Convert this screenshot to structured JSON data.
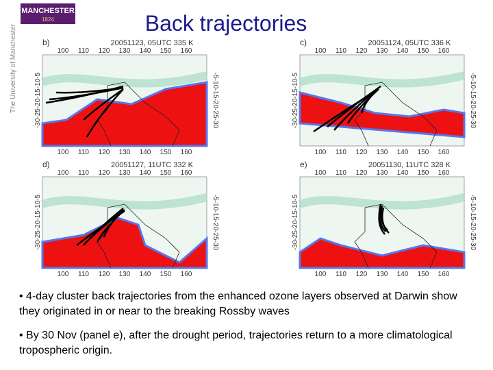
{
  "logo": {
    "name": "MANCHESTER",
    "year": "1824"
  },
  "side_text": "The University of Manchester",
  "title": "Back trajectories",
  "axes": {
    "x_ticks": [
      "100",
      "110",
      "120",
      "130",
      "140",
      "150",
      "160"
    ],
    "y_left": "-30-25-20-15-10-5",
    "y_right": "-5-10-15-20-25-30"
  },
  "panels": [
    {
      "label": "b)",
      "caption": "20051123, 05UTC 335 K"
    },
    {
      "label": "c)",
      "caption": "20051124, 05UTC 336 K"
    },
    {
      "label": "d)",
      "caption": "20051127, 11UTC 332 K"
    },
    {
      "label": "e)",
      "caption": "20051130, 11UTC 328 K"
    }
  ],
  "bullets": [
    "• 4-day cluster back trajectories from the enhanced ozone layers observed at Darwin show they originated in or near to the breaking Rossby waves",
    "• By 30 Nov (panel e), after the drought period, trajectories return to a more climatological tropospheric origin."
  ]
}
